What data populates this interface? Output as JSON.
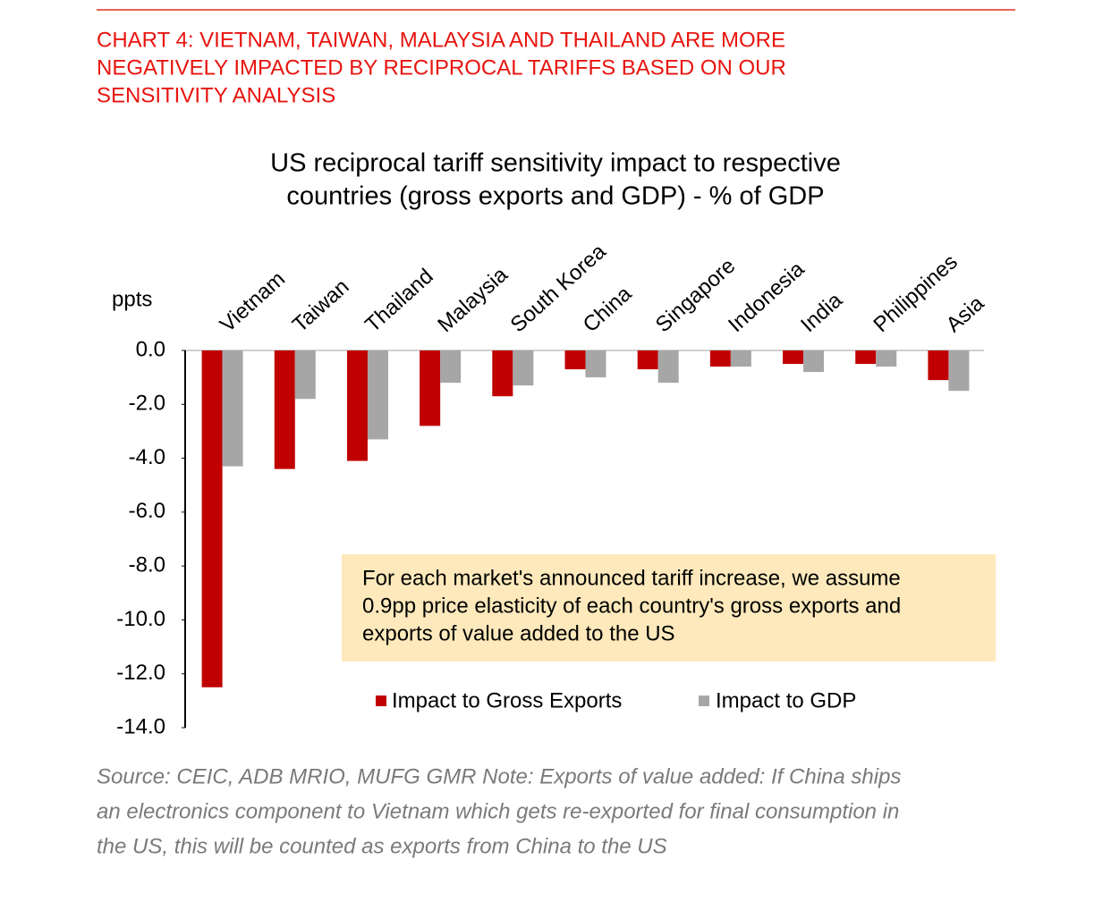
{
  "header": {
    "lines": [
      "CHART 4: VIETNAM, TAIWAN, MALAYSIA AND THAILAND ARE MORE",
      "NEGATIVELY IMPACTED BY RECIPROCAL TARIFFS BASED ON OUR",
      "SENSITIVITY ANALYSIS"
    ]
  },
  "chart_data": {
    "type": "bar",
    "title_lines": [
      "US reciprocal tariff sensitivity impact to respective",
      "countries (gross exports and GDP) - % of GDP"
    ],
    "y_label": "ppts",
    "categories": [
      "Vietnam",
      "Taiwan",
      "Thailand",
      "Malaysia",
      "South Korea",
      "China",
      "Singapore",
      "Indonesia",
      "India",
      "Philippines",
      "Asia"
    ],
    "series": [
      {
        "name": "Impact to Gross Exports",
        "color": "#c00000",
        "values": [
          -12.5,
          -4.4,
          -4.1,
          -2.8,
          -1.7,
          -0.7,
          -0.7,
          -0.6,
          -0.5,
          -0.5,
          -1.1
        ]
      },
      {
        "name": "Impact to GDP",
        "color": "#a6a6a6",
        "values": [
          -4.3,
          -1.8,
          -3.3,
          -1.2,
          -1.3,
          -1.0,
          -1.2,
          -0.6,
          -0.8,
          -0.6,
          -1.5
        ]
      }
    ],
    "ylim": [
      -14,
      0
    ],
    "yticks": [
      {
        "value": 0,
        "label": "0.0"
      },
      {
        "value": -2,
        "label": "-2.0"
      },
      {
        "value": -4,
        "label": "-4.0"
      },
      {
        "value": -6,
        "label": "-6.0"
      },
      {
        "value": -8,
        "label": "-8.0"
      },
      {
        "value": -10,
        "label": "-10.0"
      },
      {
        "value": -12,
        "label": "-12.0"
      },
      {
        "value": -14,
        "label": "-14.0"
      }
    ],
    "annotation_lines": [
      "For each market's announced tariff increase, we assume",
      "0.9pp price elasticity of each country's gross exports and",
      "exports of value added to the US"
    ]
  },
  "source": {
    "lines": [
      "Source: CEIC, ADB MRIO, MUFG GMR Note: Exports of value added: If China ships",
      "an electronics component to Vietnam which gets re-exported for final consumption in",
      "the US, this will be counted as exports from China to the US"
    ]
  }
}
